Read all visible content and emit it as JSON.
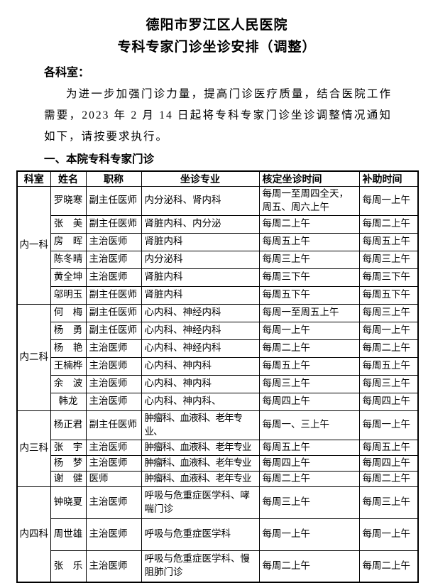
{
  "doc": {
    "title": "德阳市罗江区人民医院",
    "subtitle": "专科专家门诊坐诊安排（调整）",
    "salutation": "各科室：",
    "intro": "为进一步加强门诊力量，提高门诊医疗质量，结合医院工作需要，2023 年 2 月 14 日起将专科专家门诊坐诊调整情况通知如下，请按要求执行。",
    "section_heading": "一、本院专科专家门诊"
  },
  "table": {
    "headers": [
      "科室",
      "姓名",
      "职称",
      "坐诊专业",
      "核定坐诊时间",
      "补助时间"
    ],
    "groups": [
      {
        "dept": "内一科",
        "rows": [
          [
            "罗晓寒",
            "副主任医师",
            "内分泌科、肾内科",
            "每周一至周四全天，周五、周六上午",
            "每周一上午"
          ],
          [
            "张　美",
            "副主任医师",
            "肾脏内科、内分泌",
            "每周二上午",
            "每周二上午"
          ],
          [
            "房　晖",
            "主治医师",
            "肾脏内科",
            "每周五上午",
            "每周五上午"
          ],
          [
            "陈冬晴",
            "主治医师",
            "内分泌科",
            "每周三上午",
            "每周三上午"
          ],
          [
            "黄全坤",
            "主治医师",
            "肾脏内科",
            "每周三下午",
            "每周三下午"
          ],
          [
            "邬明玉",
            "副主任医师",
            "肾脏内科",
            "每周五下午",
            "每周五下午"
          ]
        ]
      },
      {
        "dept": "内二科",
        "rows": [
          [
            "何　梅",
            "副主任医师",
            "心内科、神经内科",
            "每周一至周五上午",
            "每周三上午"
          ],
          [
            "杨　勇",
            "副主任医师",
            "心内科、神经内科",
            "每周一上午",
            "每周一上午"
          ],
          [
            "杨　艳",
            "主治医师",
            "心内科、神经内科",
            "每周二上午",
            "每周二上午"
          ],
          [
            "王楠桦",
            "主治医师",
            "心内科、神内科",
            "每周五上午",
            "每周五上午"
          ],
          [
            "余　波",
            "主治医师",
            "心内科、神内科",
            "每周三上午",
            "每周三上午"
          ],
          [
            "韩龙",
            "主治医师",
            "心内科、神内科、",
            "每周四上午",
            "每周四上午"
          ]
        ]
      },
      {
        "dept": "内三科",
        "rows": [
          [
            "杨正君",
            "副主任医师",
            "肿瘤科、血液科、老年专业、",
            "每周一、三上午",
            "每周一上午"
          ],
          [
            "张　宇",
            "主治医师",
            "肿瘤科、血液科、老年专业",
            "每周五上午",
            "每周五上午"
          ],
          [
            "杨　梦",
            "主治医师",
            "肿瘤科、血液科、老年专业",
            "每周四上午",
            "每周四上午"
          ],
          [
            "谢　健",
            "医师",
            "肿瘤科、血液科、老年专业",
            "每周二上午",
            "每周二上午"
          ]
        ]
      },
      {
        "dept": "内四科",
        "rows": [
          [
            "钟晓夏",
            "主治医师",
            "呼吸与危重症医学科、哮喘门诊",
            "每周三上午",
            "每周三上午"
          ],
          [
            "周世雄",
            "主治医师",
            "呼吸与危重症医学科",
            "每周一上午",
            "每周一上午"
          ],
          [
            "张　乐",
            "主治医师",
            "呼吸与危重症医学科、慢阻肺门诊",
            "每周二上午",
            "每周二上午"
          ]
        ]
      }
    ]
  },
  "colors": {
    "text": "#000000",
    "background": "#ffffff",
    "table_border": "#000000"
  }
}
